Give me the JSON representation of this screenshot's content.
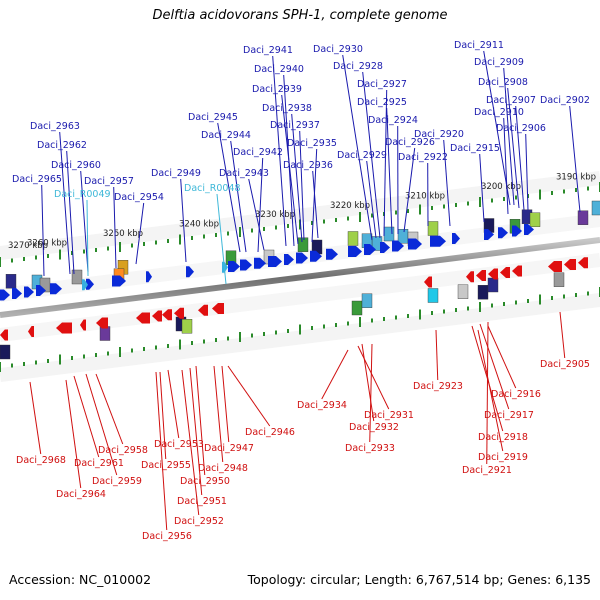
{
  "title": "Delftia acidovorans SPH-1, complete genome",
  "footer": {
    "accession": "Accession: NC_010002",
    "summary": "Topology: circular; Length: 6,767,514 bp; Genes: 6,135"
  },
  "colors": {
    "forward_label": "#1a1aad",
    "rna_label": "#3fb8d8",
    "reverse_label": "#d01010",
    "forward_gene": "#0a2ad8",
    "reverse_gene": "#e01010",
    "backbone": "#8a8a8a",
    "tick": "#2a8a2a"
  },
  "scale_labels": [
    "3190 kbp",
    "3200 kbp",
    "3210 kbp",
    "3220 kbp",
    "3230 kbp",
    "3240 kbp",
    "3250 kbp",
    "3260 kbp",
    "3270 kbp"
  ],
  "forward_labels": [
    {
      "text": "Daci_2911",
      "type": "gene"
    },
    {
      "text": "Daci_2909",
      "type": "gene"
    },
    {
      "text": "Daci_2908",
      "type": "gene"
    },
    {
      "text": "Daci_2907",
      "type": "gene"
    },
    {
      "text": "Daci_2902",
      "type": "gene"
    },
    {
      "text": "Daci_2910",
      "type": "gene"
    },
    {
      "text": "Daci_2906",
      "type": "gene"
    },
    {
      "text": "Daci_2915",
      "type": "gene"
    },
    {
      "text": "Daci_2920",
      "type": "gene"
    },
    {
      "text": "Daci_2922",
      "type": "gene"
    },
    {
      "text": "Daci_2930",
      "type": "gene"
    },
    {
      "text": "Daci_2928",
      "type": "gene"
    },
    {
      "text": "Daci_2927",
      "type": "gene"
    },
    {
      "text": "Daci_2925",
      "type": "gene"
    },
    {
      "text": "Daci_2924",
      "type": "gene"
    },
    {
      "text": "Daci_2926",
      "type": "gene"
    },
    {
      "text": "Daci_2929",
      "type": "gene"
    },
    {
      "text": "Daci_2941",
      "type": "gene"
    },
    {
      "text": "Daci_2940",
      "type": "gene"
    },
    {
      "text": "Daci_2939",
      "type": "gene"
    },
    {
      "text": "Daci_2938",
      "type": "gene"
    },
    {
      "text": "Daci_2937",
      "type": "gene"
    },
    {
      "text": "Daci_2935",
      "type": "gene"
    },
    {
      "text": "Daci_2936",
      "type": "gene"
    },
    {
      "text": "Daci_2945",
      "type": "gene"
    },
    {
      "text": "Daci_2944",
      "type": "gene"
    },
    {
      "text": "Daci_2942",
      "type": "gene"
    },
    {
      "text": "Daci_2943",
      "type": "gene"
    },
    {
      "text": "Daci_2949",
      "type": "gene"
    },
    {
      "text": "Daci_R0048",
      "type": "rna"
    },
    {
      "text": "Daci_2963",
      "type": "gene"
    },
    {
      "text": "Daci_2962",
      "type": "gene"
    },
    {
      "text": "Daci_2960",
      "type": "gene"
    },
    {
      "text": "Daci_2965",
      "type": "gene"
    },
    {
      "text": "Daci_2957",
      "type": "gene"
    },
    {
      "text": "Daci_R0049",
      "type": "rna"
    },
    {
      "text": "Daci_2954",
      "type": "gene"
    }
  ],
  "reverse_labels": [
    {
      "text": "Daci_2905"
    },
    {
      "text": "Daci_2923"
    },
    {
      "text": "Daci_2916"
    },
    {
      "text": "Daci_2917"
    },
    {
      "text": "Daci_2918"
    },
    {
      "text": "Daci_2919"
    },
    {
      "text": "Daci_2921"
    },
    {
      "text": "Daci_2934"
    },
    {
      "text": "Daci_2931"
    },
    {
      "text": "Daci_2932"
    },
    {
      "text": "Daci_2933"
    },
    {
      "text": "Daci_2946"
    },
    {
      "text": "Daci_2947"
    },
    {
      "text": "Daci_2948"
    },
    {
      "text": "Daci_2953"
    },
    {
      "text": "Daci_2955"
    },
    {
      "text": "Daci_2950"
    },
    {
      "text": "Daci_2951"
    },
    {
      "text": "Daci_2952"
    },
    {
      "text": "Daci_2956"
    },
    {
      "text": "Daci_2958"
    },
    {
      "text": "Daci_2959"
    },
    {
      "text": "Daci_2961"
    },
    {
      "text": "Daci_2964"
    },
    {
      "text": "Daci_2968"
    }
  ]
}
